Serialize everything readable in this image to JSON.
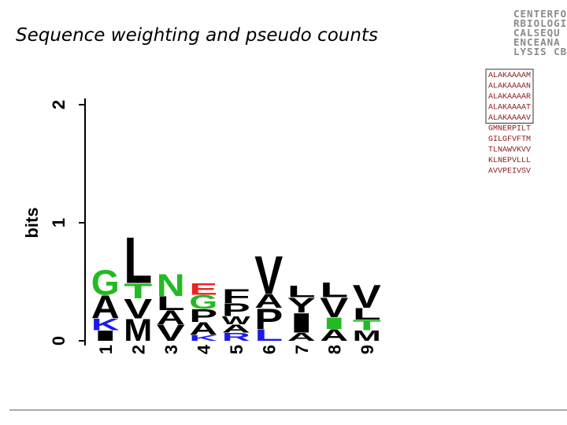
{
  "title": "Sequence weighting and pseudo counts",
  "logo_lines": [
    "CENTERFO",
    "RBIOLOGI",
    "CALSEQU",
    "ENCEANA",
    "LYSIS CBS"
  ],
  "sequence_groups": [
    {
      "boxed": true,
      "items": [
        "ALAKAAAAM",
        "ALAKAAAAN",
        "ALAKAAAAR",
        "ALAKAAAAT",
        "ALAKAAAAV"
      ]
    },
    {
      "boxed": false,
      "items": [
        "GMNERPILT",
        "GILGFVFTM",
        "TLNAWVKVV",
        "KLNEPVLLL",
        "AVVPEIVSV"
      ]
    }
  ],
  "chart_data": {
    "type": "logo",
    "ylabel": "bits",
    "ylim": [
      0,
      2
    ],
    "yticks": [
      0,
      1,
      2
    ],
    "categories": [
      "1",
      "2",
      "3",
      "4",
      "5",
      "6",
      "7",
      "8",
      "9"
    ],
    "stacks": [
      [
        {
          "letter": "G",
          "color": "#22bb22",
          "height": 0.22
        },
        {
          "letter": "A",
          "color": "#000000",
          "height": 0.2
        },
        {
          "letter": "K",
          "color": "#1a1aee",
          "height": 0.1
        },
        {
          "letter": "I",
          "color": "#000000",
          "height": 0.09
        }
      ],
      [
        {
          "letter": "L",
          "color": "#000000",
          "height": 0.4
        },
        {
          "letter": "T",
          "color": "#22bb22",
          "height": 0.13
        },
        {
          "letter": "V",
          "color": "#000000",
          "height": 0.17
        },
        {
          "letter": "M",
          "color": "#000000",
          "height": 0.19
        }
      ],
      [
        {
          "letter": "N",
          "color": "#22bb22",
          "height": 0.19
        },
        {
          "letter": "L",
          "color": "#000000",
          "height": 0.12
        },
        {
          "letter": "A",
          "color": "#000000",
          "height": 0.12
        },
        {
          "letter": "V",
          "color": "#000000",
          "height": 0.14
        }
      ],
      [
        {
          "letter": "E",
          "color": "#ee2222",
          "height": 0.1
        },
        {
          "letter": "G",
          "color": "#22bb22",
          "height": 0.12
        },
        {
          "letter": "P",
          "color": "#000000",
          "height": 0.11
        },
        {
          "letter": "A",
          "color": "#000000",
          "height": 0.11
        },
        {
          "letter": "K",
          "color": "#1a1aee",
          "height": 0.05
        }
      ],
      [
        {
          "letter": "F",
          "color": "#000000",
          "height": 0.12
        },
        {
          "letter": "P",
          "color": "#000000",
          "height": 0.11
        },
        {
          "letter": "W",
          "color": "#000000",
          "height": 0.07
        },
        {
          "letter": "A",
          "color": "#000000",
          "height": 0.07
        },
        {
          "letter": "R",
          "color": "#1a1aee",
          "height": 0.07
        }
      ],
      [
        {
          "letter": "V",
          "color": "#000000",
          "height": 0.33
        },
        {
          "letter": "A",
          "color": "#000000",
          "height": 0.12
        },
        {
          "letter": "P",
          "color": "#000000",
          "height": 0.18
        },
        {
          "letter": "L",
          "color": "#1a1aee",
          "height": 0.1
        }
      ],
      [
        {
          "letter": "L",
          "color": "#000000",
          "height": 0.1
        },
        {
          "letter": "Y",
          "color": "#000000",
          "height": 0.13
        },
        {
          "letter": "I",
          "color": "#000000",
          "height": 0.17
        },
        {
          "letter": "A",
          "color": "#000000",
          "height": 0.07
        }
      ],
      [
        {
          "letter": "L",
          "color": "#000000",
          "height": 0.13
        },
        {
          "letter": "V",
          "color": "#000000",
          "height": 0.17
        },
        {
          "letter": "I",
          "color": "#22bb22",
          "height": 0.1
        },
        {
          "letter": "A",
          "color": "#000000",
          "height": 0.1
        }
      ],
      [
        {
          "letter": "V",
          "color": "#000000",
          "height": 0.2
        },
        {
          "letter": "L",
          "color": "#000000",
          "height": 0.1
        },
        {
          "letter": "T",
          "color": "#22bb22",
          "height": 0.09
        },
        {
          "letter": "M",
          "color": "#000000",
          "height": 0.09
        }
      ]
    ]
  }
}
